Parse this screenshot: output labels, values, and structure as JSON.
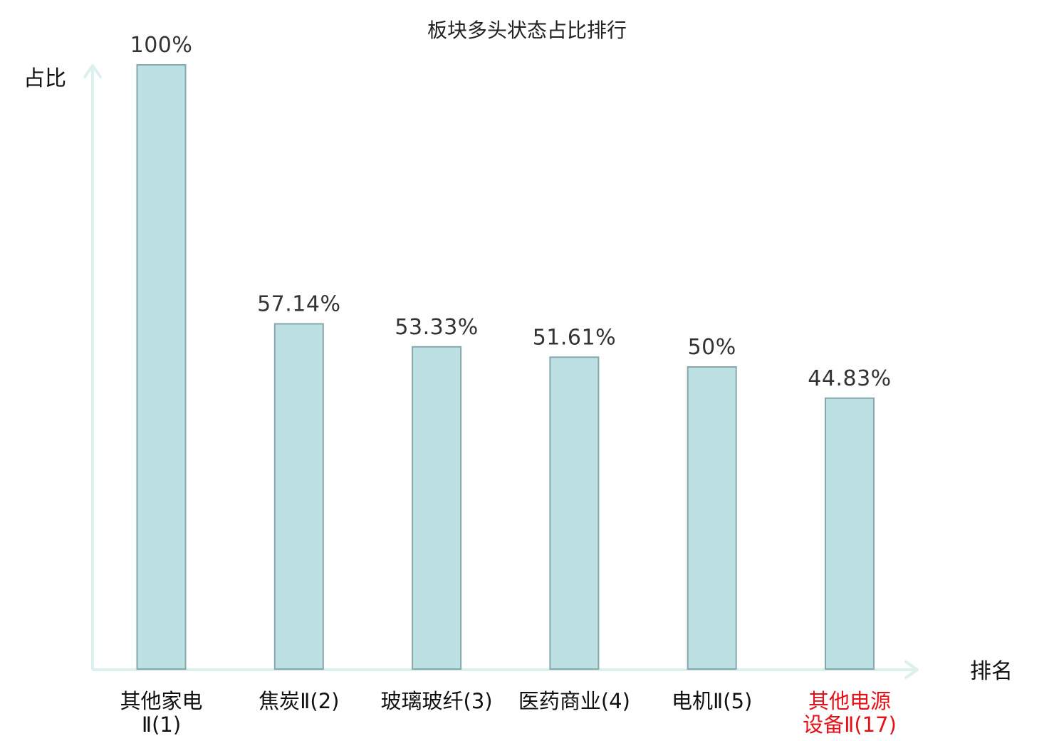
{
  "chart_data": {
    "type": "bar",
    "title": "板块多头状态占比排行",
    "ylabel": "占比",
    "xlabel": "排名",
    "ylim": [
      0,
      100
    ],
    "grid": false,
    "legend": "none",
    "value_suffix": "%",
    "categories": [
      {
        "name_lines": [
          "其他家电",
          "Ⅱ(1)"
        ],
        "label": "100%",
        "value": 100,
        "highlight": false
      },
      {
        "name_lines": [
          "焦炭Ⅱ(2)"
        ],
        "label": "57.14%",
        "value": 57.14,
        "highlight": false
      },
      {
        "name_lines": [
          "玻璃玻纤(3)"
        ],
        "label": "53.33%",
        "value": 53.33,
        "highlight": false
      },
      {
        "name_lines": [
          "医药商业(4)"
        ],
        "label": "51.61%",
        "value": 51.61,
        "highlight": false
      },
      {
        "name_lines": [
          "电机Ⅱ(5)"
        ],
        "label": "50%",
        "value": 50,
        "highlight": false
      },
      {
        "name_lines": [
          "其他电源",
          "设备Ⅱ(17)"
        ],
        "label": "44.83%",
        "value": 44.83,
        "highlight": true
      }
    ],
    "colors": {
      "bar_fill": "#bde0e3",
      "bar_stroke": "#86a8ac",
      "axis": "#dcf0ee",
      "highlight_label": "#e3121a",
      "label": "#111111"
    }
  }
}
